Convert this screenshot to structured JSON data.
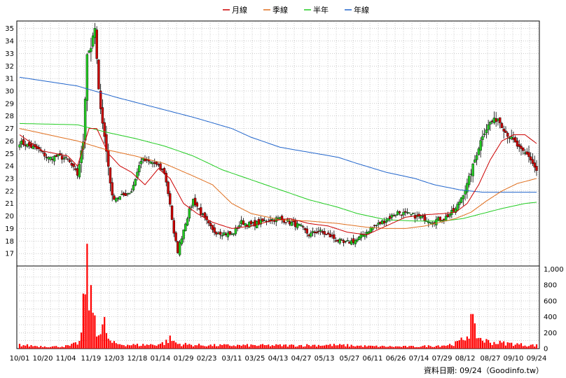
{
  "chart_data": {
    "type": "candlestick",
    "legend": {
      "placement": "top-center",
      "items": [
        {
          "label": "月線",
          "color": "#cc0000"
        },
        {
          "label": "季線",
          "color": "#e07020"
        },
        {
          "label": "半年",
          "color": "#22cc22"
        },
        {
          "label": "年線",
          "color": "#2266cc"
        }
      ]
    },
    "price_axis": {
      "ylim": [
        16,
        35.6
      ],
      "ticks": [
        17,
        18,
        19,
        20,
        21,
        22,
        23,
        24,
        25,
        26,
        27,
        28,
        29,
        30,
        31,
        32,
        33,
        34,
        35
      ]
    },
    "volume_axis": {
      "ylim": [
        0,
        1040
      ],
      "ticks": [
        0,
        200,
        400,
        600,
        800,
        1000
      ],
      "tick_labels": [
        "0",
        "200",
        "400",
        "600",
        "800",
        "1,000"
      ]
    },
    "x_tick_labels": [
      "10/01",
      "10/20",
      "11/04",
      "11/19",
      "12/03",
      "12/18",
      "01/14",
      "01/29",
      "02/23",
      "03/11",
      "03/25",
      "04/13",
      "04/27",
      "05/13",
      "05/27",
      "06/11",
      "06/26",
      "07/14",
      "07/29",
      "08/12",
      "08/27",
      "09/10",
      "09/24"
    ],
    "source_note": "資料日期: 09/24（Goodinfo.tw）",
    "colors": {
      "up": "#22cc22",
      "down": "#cc0000",
      "grid": "#999999",
      "volume": "#ff0000"
    },
    "anchors": {
      "price": [
        [
          0,
          25.9
        ],
        [
          5,
          25.6
        ],
        [
          10,
          25.3
        ],
        [
          15,
          24.6
        ],
        [
          20,
          24.8
        ],
        [
          25,
          24.5
        ],
        [
          30,
          23.3
        ],
        [
          33,
          26
        ],
        [
          35,
          33
        ],
        [
          37,
          33.5
        ],
        [
          39,
          35
        ],
        [
          41,
          30
        ],
        [
          43,
          27.5
        ],
        [
          46,
          24
        ],
        [
          48,
          21.5
        ],
        [
          52,
          21.5
        ],
        [
          58,
          22
        ],
        [
          63,
          24.5
        ],
        [
          70,
          24.2
        ],
        [
          75,
          23.5
        ],
        [
          78,
          21
        ],
        [
          80,
          18.5
        ],
        [
          82,
          17.2
        ],
        [
          86,
          19.5
        ],
        [
          90,
          21.3
        ],
        [
          95,
          20
        ],
        [
          100,
          18.8
        ],
        [
          110,
          18.5
        ],
        [
          115,
          19.5
        ],
        [
          120,
          19.3
        ],
        [
          125,
          19.5
        ],
        [
          130,
          19.7
        ],
        [
          135,
          19.8
        ],
        [
          140,
          19.5
        ],
        [
          145,
          19.2
        ],
        [
          150,
          18.5
        ],
        [
          155,
          18.8
        ],
        [
          162,
          18.3
        ],
        [
          168,
          17.8
        ],
        [
          175,
          18.1
        ],
        [
          182,
          19
        ],
        [
          190,
          19.7
        ],
        [
          196,
          20.3
        ],
        [
          202,
          20.1
        ],
        [
          208,
          19.9
        ],
        [
          214,
          19.6
        ],
        [
          220,
          19.8
        ],
        [
          226,
          20.5
        ],
        [
          232,
          22.5
        ],
        [
          236,
          24.5
        ],
        [
          240,
          26.5
        ],
        [
          244,
          27.5
        ],
        [
          248,
          27.8
        ],
        [
          252,
          26.7
        ],
        [
          256,
          26
        ],
        [
          260,
          25.2
        ],
        [
          264,
          24.8
        ],
        [
          268,
          23.6
        ]
      ],
      "ma20": [
        [
          0,
          26.5
        ],
        [
          12,
          25.2
        ],
        [
          25,
          24.8
        ],
        [
          30,
          24
        ],
        [
          36,
          27
        ],
        [
          40,
          27
        ],
        [
          46,
          25
        ],
        [
          52,
          24
        ],
        [
          58,
          23.5
        ],
        [
          65,
          22.5
        ],
        [
          72,
          23.8
        ],
        [
          78,
          23
        ],
        [
          85,
          21
        ],
        [
          92,
          20.2
        ],
        [
          100,
          19.5
        ],
        [
          110,
          19
        ],
        [
          120,
          19.2
        ],
        [
          130,
          19.6
        ],
        [
          140,
          19.8
        ],
        [
          150,
          19.4
        ],
        [
          160,
          19.2
        ],
        [
          170,
          18.7
        ],
        [
          180,
          18.5
        ],
        [
          190,
          19.2
        ],
        [
          200,
          19.9
        ],
        [
          210,
          20.1
        ],
        [
          220,
          20.2
        ],
        [
          226,
          20.3
        ],
        [
          232,
          21
        ],
        [
          238,
          22.5
        ],
        [
          244,
          24.5
        ],
        [
          250,
          26
        ],
        [
          256,
          26.5
        ],
        [
          262,
          26.5
        ],
        [
          268,
          25.8
        ]
      ],
      "ma60": [
        [
          0,
          27
        ],
        [
          15,
          26.5
        ],
        [
          30,
          26
        ],
        [
          45,
          25.3
        ],
        [
          60,
          24.8
        ],
        [
          75,
          24.2
        ],
        [
          90,
          23.2
        ],
        [
          100,
          22.5
        ],
        [
          110,
          21
        ],
        [
          120,
          20.2
        ],
        [
          135,
          19.7
        ],
        [
          150,
          19.6
        ],
        [
          165,
          19.4
        ],
        [
          180,
          19.1
        ],
        [
          190,
          19
        ],
        [
          200,
          19
        ],
        [
          210,
          19.2
        ],
        [
          218,
          19.5
        ],
        [
          226,
          19.8
        ],
        [
          234,
          20.3
        ],
        [
          242,
          21.2
        ],
        [
          250,
          22
        ],
        [
          258,
          22.6
        ],
        [
          268,
          23
        ]
      ],
      "ma120": [
        [
          0,
          27.4
        ],
        [
          30,
          27.3
        ],
        [
          45,
          26.7
        ],
        [
          60,
          26.2
        ],
        [
          75,
          25.6
        ],
        [
          90,
          24.8
        ],
        [
          105,
          23.7
        ],
        [
          120,
          22.9
        ],
        [
          135,
          22.1
        ],
        [
          150,
          21.3
        ],
        [
          165,
          20.7
        ],
        [
          175,
          20.2
        ],
        [
          190,
          19.7
        ],
        [
          205,
          19.6
        ],
        [
          220,
          19.6
        ],
        [
          230,
          19.8
        ],
        [
          240,
          20.2
        ],
        [
          250,
          20.6
        ],
        [
          262,
          21
        ],
        [
          268,
          21.1
        ]
      ],
      "ma240": [
        [
          0,
          31.1
        ],
        [
          30,
          30.4
        ],
        [
          50,
          29.5
        ],
        [
          70,
          28.7
        ],
        [
          90,
          27.9
        ],
        [
          110,
          27
        ],
        [
          120,
          26.3
        ],
        [
          135,
          25.5
        ],
        [
          150,
          25.1
        ],
        [
          165,
          24.7
        ],
        [
          175,
          24.2
        ],
        [
          190,
          23.5
        ],
        [
          205,
          23
        ],
        [
          215,
          22.5
        ],
        [
          228,
          22.1
        ],
        [
          240,
          21.9
        ],
        [
          268,
          21.9
        ]
      ],
      "volume": [
        [
          0,
          45
        ],
        [
          10,
          30
        ],
        [
          20,
          25
        ],
        [
          26,
          35
        ],
        [
          29,
          60
        ],
        [
          31,
          80
        ],
        [
          32,
          200
        ],
        [
          33,
          480
        ],
        [
          34,
          880
        ],
        [
          35,
          1000
        ],
        [
          36,
          700
        ],
        [
          37,
          560
        ],
        [
          38,
          490
        ],
        [
          39,
          420
        ],
        [
          40,
          260
        ],
        [
          41,
          220
        ],
        [
          42,
          180
        ],
        [
          43,
          250
        ],
        [
          44,
          300
        ],
        [
          45,
          220
        ],
        [
          46,
          120
        ],
        [
          47,
          80
        ],
        [
          50,
          60
        ],
        [
          55,
          50
        ],
        [
          60,
          45
        ],
        [
          70,
          50
        ],
        [
          75,
          70
        ],
        [
          78,
          120
        ],
        [
          80,
          90
        ],
        [
          82,
          60
        ],
        [
          90,
          45
        ],
        [
          100,
          40
        ],
        [
          120,
          40
        ],
        [
          140,
          40
        ],
        [
          160,
          45
        ],
        [
          170,
          40
        ],
        [
          180,
          30
        ],
        [
          195,
          25
        ],
        [
          205,
          25
        ],
        [
          215,
          35
        ],
        [
          222,
          45
        ],
        [
          226,
          65
        ],
        [
          229,
          100
        ],
        [
          231,
          140
        ],
        [
          233,
          210
        ],
        [
          234,
          360
        ],
        [
          235,
          300
        ],
        [
          236,
          220
        ],
        [
          237,
          180
        ],
        [
          238,
          140
        ],
        [
          240,
          110
        ],
        [
          244,
          80
        ],
        [
          250,
          70
        ],
        [
          256,
          60
        ],
        [
          262,
          45
        ],
        [
          268,
          40
        ]
      ]
    }
  }
}
